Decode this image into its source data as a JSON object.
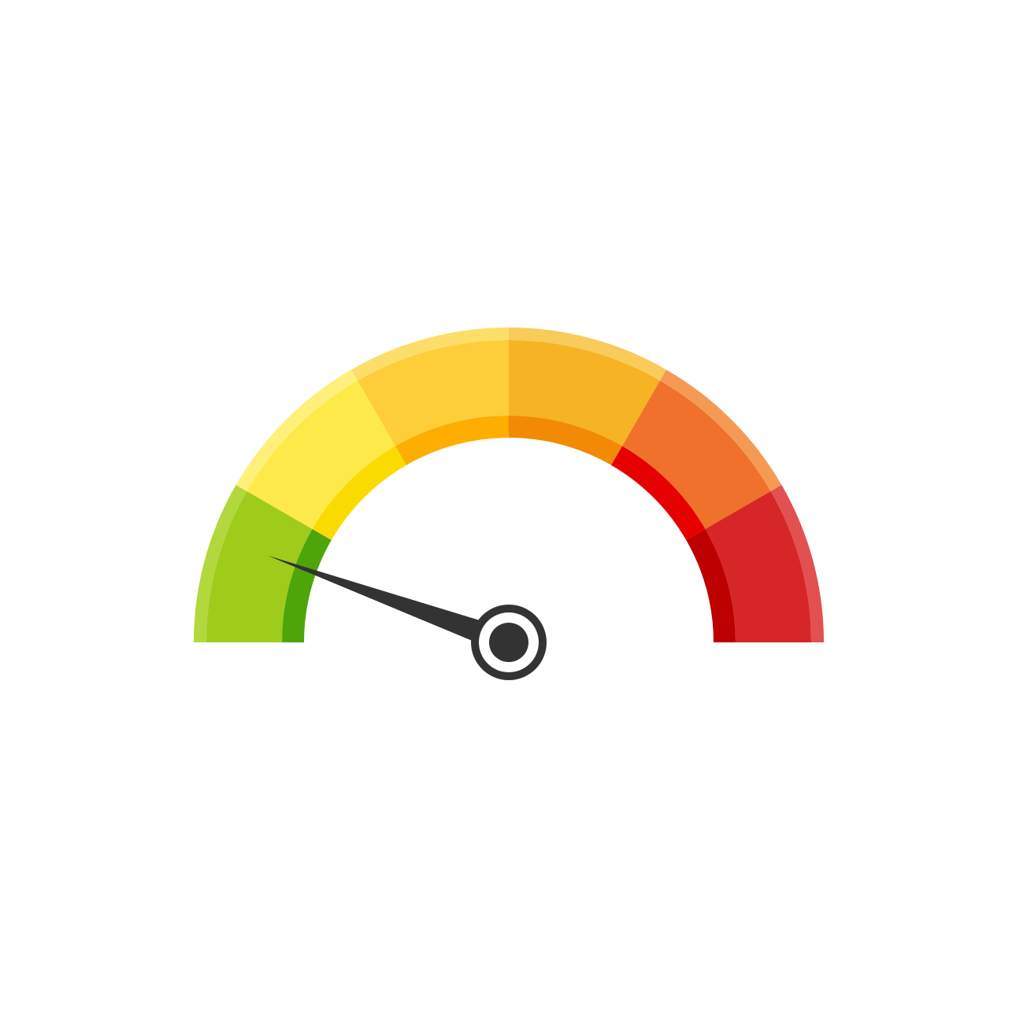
{
  "gauge": {
    "icon": "speedometer-gauge-icon",
    "needle_level": 0.11,
    "segments": [
      {
        "name": "green",
        "outer_color": "#9FCB1B",
        "inner_color": "#4EA50A",
        "rim_color": "#B2D83D"
      },
      {
        "name": "yellow",
        "outer_color": "#FEE94A",
        "inner_color": "#FADB00",
        "rim_color": "#FEF07A"
      },
      {
        "name": "light-orange",
        "outer_color": "#FDCE3A",
        "inner_color": "#FDAE00",
        "rim_color": "#FEDE6A"
      },
      {
        "name": "amber",
        "outer_color": "#F6B324",
        "inner_color": "#F28A05",
        "rim_color": "#F9CB5A"
      },
      {
        "name": "orange",
        "outer_color": "#F0712C",
        "inner_color": "#E60000",
        "rim_color": "#F59A55"
      },
      {
        "name": "red",
        "outer_color": "#D72628",
        "inner_color": "#BD0000",
        "rim_color": "#E25052"
      }
    ],
    "needle_color": "#333333",
    "hub_ring_color": "#333333",
    "hub_gap_color": "#ffffff"
  }
}
